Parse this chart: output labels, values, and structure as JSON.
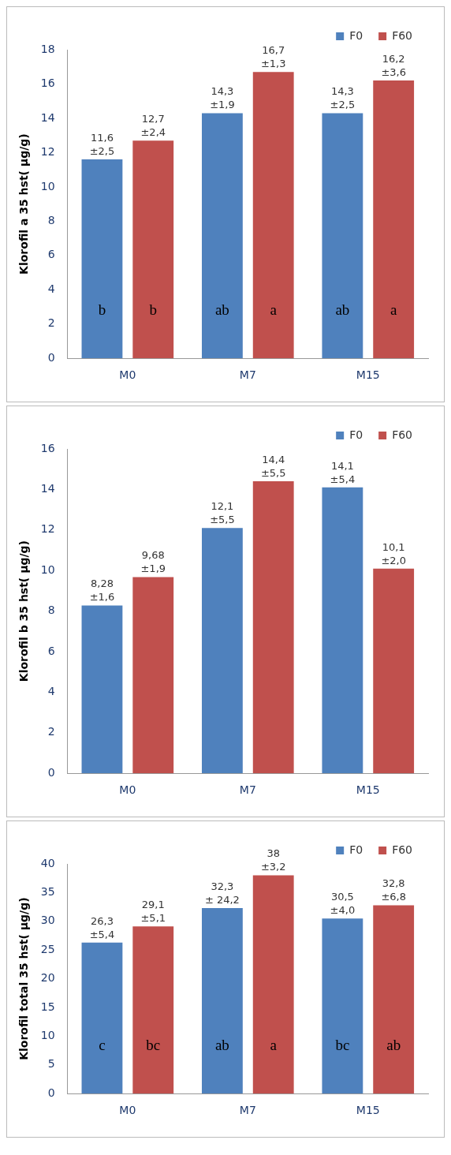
{
  "chart_data": [
    {
      "type": "bar",
      "ylabel": "Klorofil a 35 hst( µg/g)",
      "categories": [
        "M0",
        "M7",
        "M15"
      ],
      "series": [
        {
          "name": "F0",
          "color": "#4f81bd",
          "values": [
            11.6,
            14.3,
            14.3
          ],
          "value_labels": [
            "11,6 ±2,5",
            "14,3 ±1,9",
            "14,3 ±2,5"
          ]
        },
        {
          "name": "F60",
          "color": "#c0504d",
          "values": [
            12.7,
            16.7,
            16.2
          ],
          "value_labels": [
            "12,7 ±2,4",
            "16,7 ±1,3",
            "16,2 ±3,6"
          ]
        }
      ],
      "ylim": [
        0,
        18
      ],
      "yticks": [
        0,
        2,
        4,
        6,
        8,
        10,
        12,
        14,
        16,
        18
      ],
      "grid": false,
      "legend": "top right",
      "annotations": [
        "b",
        "b",
        "ab",
        "a",
        "ab",
        "a"
      ]
    },
    {
      "type": "bar",
      "ylabel": "Klorofil b 35 hst( µg/g)",
      "categories": [
        "M0",
        "M7",
        "M15"
      ],
      "series": [
        {
          "name": "F0",
          "color": "#4f81bd",
          "values": [
            8.28,
            12.1,
            14.1
          ],
          "value_labels": [
            "8,28 ±1,6",
            "12,1 ±5,5",
            "14,1 ±5,4"
          ]
        },
        {
          "name": "F60",
          "color": "#c0504d",
          "values": [
            9.68,
            14.4,
            10.1
          ],
          "value_labels": [
            "9,68 ±1,9",
            "14,4 ±5,5",
            "10,1 ±2,0"
          ]
        }
      ],
      "ylim": [
        0,
        16
      ],
      "yticks": [
        0,
        2,
        4,
        6,
        8,
        10,
        12,
        14,
        16
      ],
      "grid": false,
      "legend": "top right"
    },
    {
      "type": "bar",
      "ylabel": "Klorofil total 35 hst( µg/g)",
      "categories": [
        "M0",
        "M7",
        "M15"
      ],
      "series": [
        {
          "name": "F0",
          "color": "#4f81bd",
          "values": [
            26.3,
            32.3,
            30.5
          ],
          "value_labels": [
            "26,3 ±5,4",
            "32,3 ± 24,2",
            "30,5 ±4,0"
          ]
        },
        {
          "name": "F60",
          "color": "#c0504d",
          "values": [
            29.1,
            38,
            32.8
          ],
          "value_labels": [
            "29,1 ±5,1",
            "38 ±3,2",
            "32,8 ±6,8"
          ]
        }
      ],
      "ylim": [
        0,
        40
      ],
      "yticks": [
        0,
        5,
        10,
        15,
        20,
        25,
        30,
        35,
        40
      ],
      "grid": false,
      "legend": "top right",
      "annotations": [
        "c",
        "bc",
        "ab",
        "a",
        "bc",
        "ab"
      ]
    }
  ]
}
